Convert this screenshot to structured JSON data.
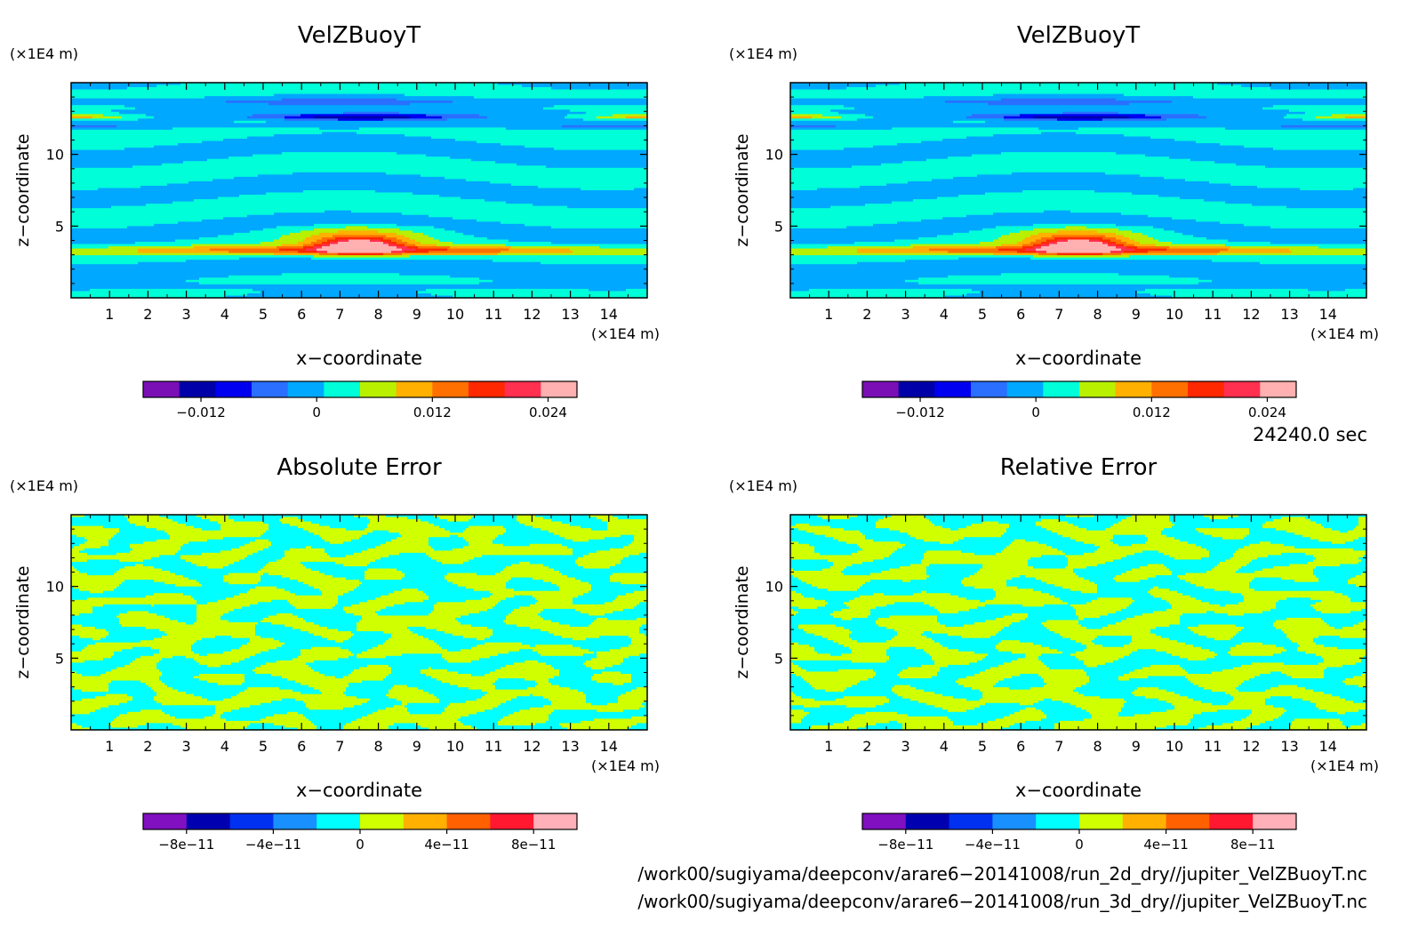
{
  "panels": [
    {
      "title": "VelZBuoyT",
      "z_unit": "(×1E4 m)",
      "x_unit": "(×1E4 m)",
      "xlabel": "x−coordinate",
      "ylabel": "z−coordinate",
      "kind": "field",
      "colorbar": {
        "levels": 12,
        "ticks": [
          {
            "value": -0.012,
            "label": "−0.012"
          },
          {
            "value": 0,
            "label": "0"
          },
          {
            "value": 0.012,
            "label": "0.012"
          },
          {
            "value": 0.024,
            "label": "0.024"
          }
        ],
        "range": [
          -0.018,
          0.027
        ]
      }
    },
    {
      "title": "VelZBuoyT",
      "z_unit": "(×1E4 m)",
      "x_unit": "(×1E4 m)",
      "xlabel": "x−coordinate",
      "ylabel": "z−coordinate",
      "kind": "field",
      "colorbar": {
        "levels": 12,
        "ticks": [
          {
            "value": -0.012,
            "label": "−0.012"
          },
          {
            "value": 0,
            "label": "0"
          },
          {
            "value": 0.012,
            "label": "0.012"
          },
          {
            "value": 0.024,
            "label": "0.024"
          }
        ],
        "range": [
          -0.018,
          0.027
        ]
      }
    },
    {
      "title": "Absolute Error",
      "z_unit": "(×1E4 m)",
      "x_unit": "(×1E4 m)",
      "xlabel": "x−coordinate",
      "ylabel": "z−coordinate",
      "kind": "error",
      "colorbar": {
        "levels": 10,
        "ticks": [
          {
            "value": -8e-11,
            "label": "−8e−11"
          },
          {
            "value": -4e-11,
            "label": "−4e−11"
          },
          {
            "value": 0,
            "label": "0"
          },
          {
            "value": 4e-11,
            "label": "4e−11"
          },
          {
            "value": 8e-11,
            "label": "8e−11"
          }
        ],
        "range": [
          -1e-10,
          1e-10
        ]
      }
    },
    {
      "title": "Relative Error",
      "z_unit": "(×1E4 m)",
      "x_unit": "(×1E4 m)",
      "xlabel": "x−coordinate",
      "ylabel": "z−coordinate",
      "kind": "error",
      "colorbar": {
        "levels": 10,
        "ticks": [
          {
            "value": -8e-11,
            "label": "−8e−11"
          },
          {
            "value": -4e-11,
            "label": "−4e−11"
          },
          {
            "value": 0,
            "label": "0"
          },
          {
            "value": 4e-11,
            "label": "4e−11"
          },
          {
            "value": 8e-11,
            "label": "8e−11"
          }
        ],
        "range": [
          -1e-10,
          1e-10
        ]
      }
    }
  ],
  "axes": {
    "x_ticks": [
      1,
      2,
      3,
      4,
      5,
      6,
      7,
      8,
      9,
      10,
      11,
      12,
      13,
      14
    ],
    "x_range": [
      0,
      15
    ],
    "z_ticks": [
      5,
      10
    ],
    "z_range": [
      0,
      15
    ]
  },
  "palette12": [
    "#7a0fb5",
    "#0000a8",
    "#0000f0",
    "#2a6fff",
    "#00a8ff",
    "#00ffd8",
    "#b8f000",
    "#ffb000",
    "#ff7000",
    "#ff2800",
    "#ff3050",
    "#ffb0b0"
  ],
  "palette10": [
    "#8010c0",
    "#0000b0",
    "#0030f0",
    "#1890ff",
    "#00ffff",
    "#d0ff00",
    "#ffb000",
    "#ff6000",
    "#ff1830",
    "#ffb0b8"
  ],
  "time_label": "24240.0 sec",
  "files": [
    "/work00/sugiyama/deepconv/arare6−20141008/run_2d_dry//jupiter_VelZBuoyT.nc",
    "/work00/sugiyama/deepconv/arare6−20141008/run_3d_dry//jupiter_VelZBuoyT.nc"
  ],
  "chart_data": [
    {
      "type": "heatmap",
      "title": "VelZBuoyT",
      "xlabel": "x−coordinate",
      "ylabel": "z−coordinate",
      "xlim": [
        0,
        15
      ],
      "ylim": [
        0,
        15
      ],
      "colorbar_ticks": [
        -0.012,
        0,
        0.012,
        0.024
      ]
    },
    {
      "type": "heatmap",
      "title": "VelZBuoyT",
      "xlabel": "x−coordinate",
      "ylabel": "z−coordinate",
      "xlim": [
        0,
        15
      ],
      "ylim": [
        0,
        15
      ],
      "colorbar_ticks": [
        -0.012,
        0,
        0.012,
        0.024
      ]
    },
    {
      "type": "heatmap",
      "title": "Absolute Error",
      "xlabel": "x−coordinate",
      "ylabel": "z−coordinate",
      "xlim": [
        0,
        15
      ],
      "ylim": [
        0,
        15
      ],
      "colorbar_ticks": [
        -8e-11,
        -4e-11,
        0,
        4e-11,
        8e-11
      ]
    },
    {
      "type": "heatmap",
      "title": "Relative Error",
      "xlabel": "x−coordinate",
      "ylabel": "z−coordinate",
      "xlim": [
        0,
        15
      ],
      "ylim": [
        0,
        15
      ],
      "colorbar_ticks": [
        -8e-11,
        -4e-11,
        0,
        4e-11,
        8e-11
      ]
    }
  ]
}
